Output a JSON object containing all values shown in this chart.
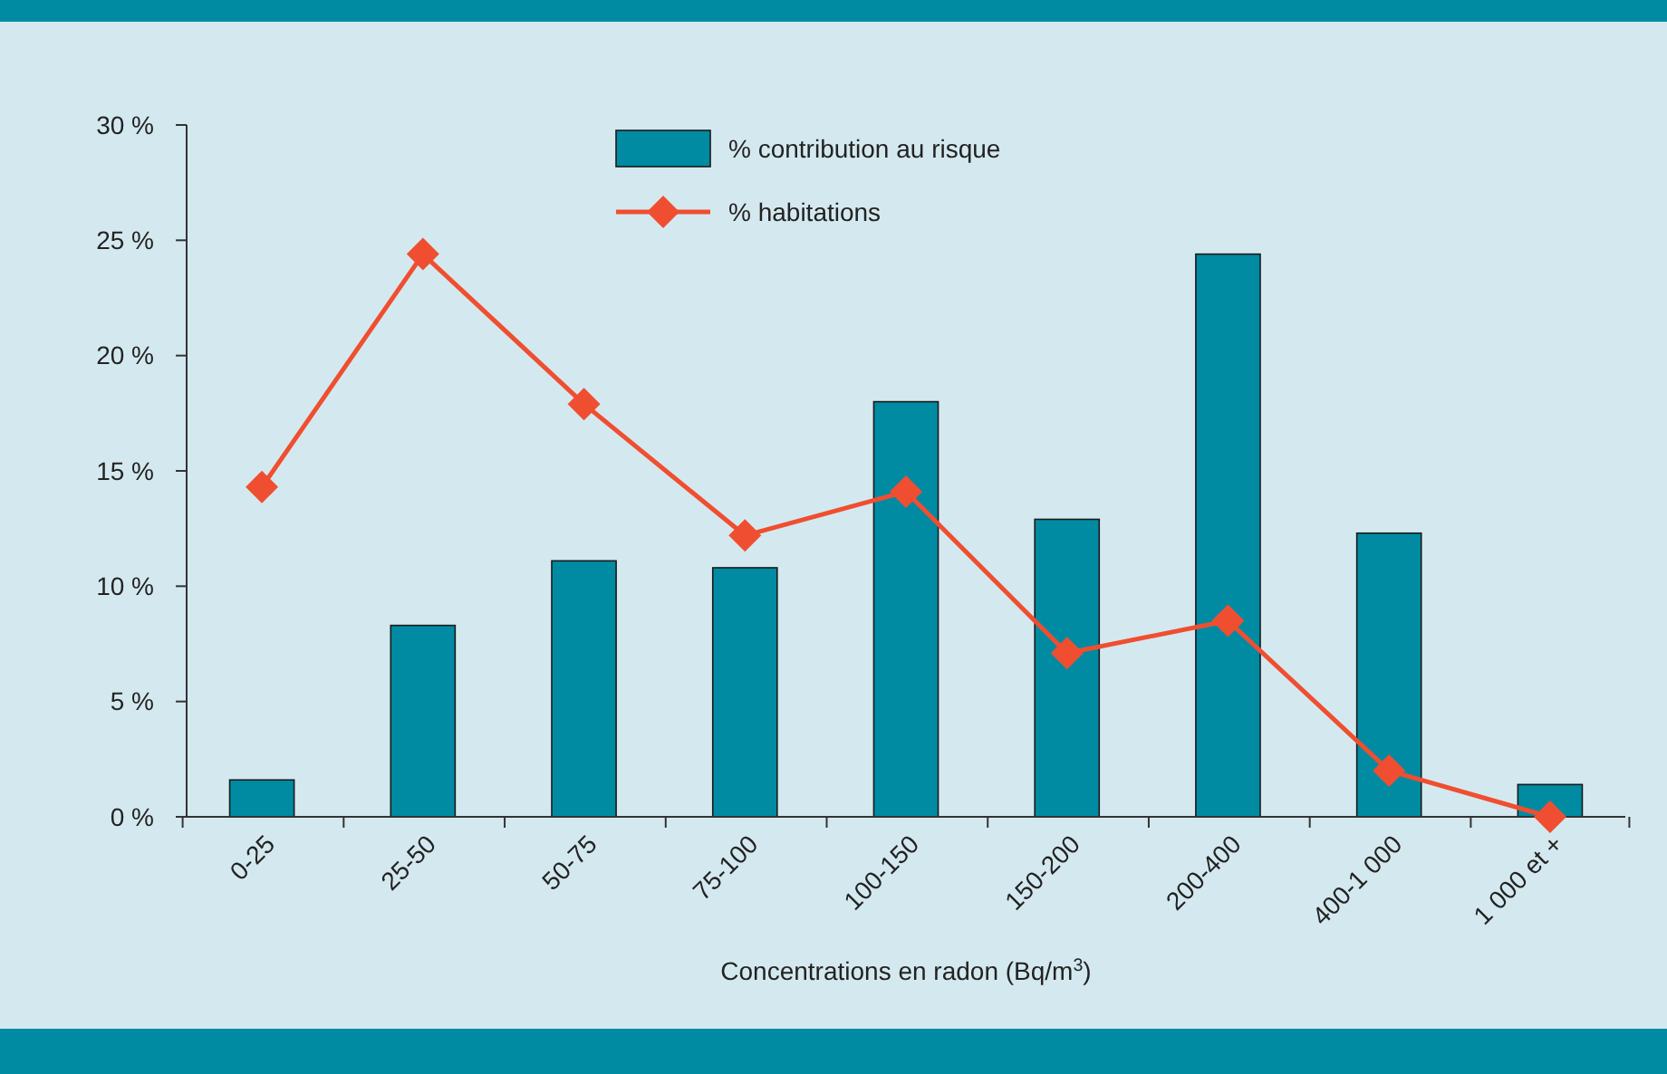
{
  "chart_data": {
    "type": "bar",
    "xlabel": "Concentrations en radon (Bq/m$^{3}$)",
    "categories": [
      "0-25",
      "25-50",
      "50-75",
      "75-100",
      "100-150",
      "150-200",
      "200-400",
      "400-1 000",
      "1 000 et +"
    ],
    "series": [
      {
        "name": "% contribution au risque",
        "color": "#008ba3",
        "values": [
          1.6,
          8.3,
          11.1,
          10.8,
          18.0,
          12.9,
          24.4,
          12.3,
          1.4
        ]
      },
      {
        "name": "% habitations",
        "type": "line",
        "color": "#f04e30",
        "marker": "diamond",
        "values": [
          14.3,
          24.4,
          17.9,
          12.2,
          14.1,
          7.1,
          8.5,
          2.0,
          0
        ]
      }
    ],
    "ylim": [
      0,
      30
    ],
    "yticks": [
      {
        "value": 0,
        "label": "0 %"
      },
      {
        "value": 5,
        "label": "5 %"
      },
      {
        "value": 10,
        "label": "10 %"
      },
      {
        "value": 15,
        "label": "15 %"
      },
      {
        "value": 20,
        "label": "20 %"
      },
      {
        "value": 25,
        "label": "25 %"
      },
      {
        "value": 30,
        "label": "30 %"
      }
    ],
    "grid": false,
    "legend": "top"
  }
}
